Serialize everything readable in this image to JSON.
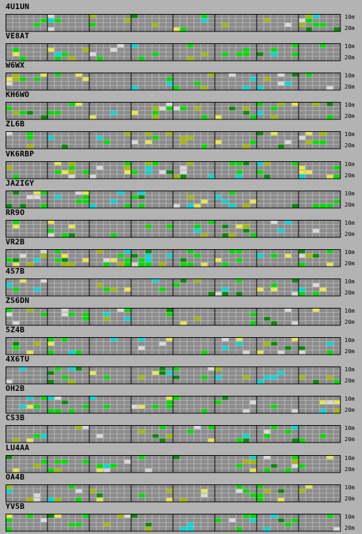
{
  "band_labels": {
    "top": "10m",
    "bottom": "20m"
  },
  "colors": {
    "background": "#b3b3b3",
    "cell": "#8c8c8c",
    "grid_line": "#d0d0d0",
    "block_border": "#000000",
    "green": "#00dd00",
    "dark_green": "#0a8a0a",
    "olive": "#a3b800",
    "cyan": "#00d8d8",
    "yellow": "#e6e650",
    "light_gray": "#d8d8d8"
  },
  "stations": [
    {
      "callsign": "4U1UN",
      "activity": 0.35
    },
    {
      "callsign": "VE8AT",
      "activity": 0.25
    },
    {
      "callsign": "W6WX",
      "activity": 0.25
    },
    {
      "callsign": "KH6WO",
      "activity": 0.3
    },
    {
      "callsign": "ZL6B",
      "activity": 0.35
    },
    {
      "callsign": "VK6RBP",
      "activity": 0.3
    },
    {
      "callsign": "JA2IGY",
      "activity": 0.4
    },
    {
      "callsign": "RR9O",
      "activity": 0.2
    },
    {
      "callsign": "VR2B",
      "activity": 0.55
    },
    {
      "callsign": "4S7B",
      "activity": 0.25
    },
    {
      "callsign": "ZS6DN",
      "activity": 0.25
    },
    {
      "callsign": "5Z4B",
      "activity": 0.3
    },
    {
      "callsign": "4X6TU",
      "activity": 0.3
    },
    {
      "callsign": "OH2B",
      "activity": 0.3
    },
    {
      "callsign": "CS3B",
      "activity": 0.25
    },
    {
      "callsign": "LU4AA",
      "activity": 0.3
    },
    {
      "callsign": "OA4B",
      "activity": 0.3
    },
    {
      "callsign": "YV5B",
      "activity": 0.25
    }
  ]
}
